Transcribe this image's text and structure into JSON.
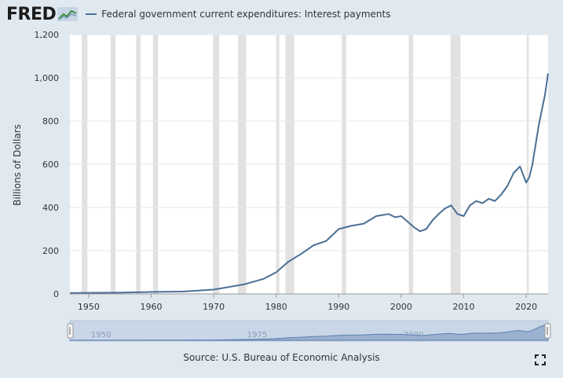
{
  "brand": {
    "logo_text": "FRED"
  },
  "footer": {
    "source": "Source: U.S. Bureau of Economic Analysis"
  },
  "icons": {
    "logo": "fred-chart-icon",
    "fullscreen": "fullscreen-icon"
  },
  "chart_data": {
    "type": "line",
    "title": "",
    "xlabel": "",
    "ylabel": "Billions of Dollars",
    "xlim": [
      1947,
      2023.5
    ],
    "ylim": [
      0,
      1200
    ],
    "grid": true,
    "legend_position": "top-left",
    "x_ticks": [
      1950,
      1960,
      1970,
      1980,
      1990,
      2000,
      2010,
      2020
    ],
    "y_ticks": [
      0,
      200,
      400,
      600,
      800,
      1000,
      1200
    ],
    "y_tick_labels": [
      "0",
      "200",
      "400",
      "600",
      "800",
      "1,000",
      "1,200"
    ],
    "recessions": [
      [
        1948.9,
        1949.8
      ],
      [
        1953.5,
        1954.3
      ],
      [
        1957.6,
        1958.3
      ],
      [
        1960.3,
        1961.1
      ],
      [
        1969.9,
        1970.9
      ],
      [
        1973.9,
        1975.2
      ],
      [
        1980.0,
        1980.5
      ],
      [
        1981.5,
        1982.9
      ],
      [
        1990.5,
        1991.2
      ],
      [
        2001.2,
        2001.9
      ],
      [
        2007.9,
        2009.5
      ],
      [
        2020.1,
        2020.4
      ]
    ],
    "series": [
      {
        "name": "Federal government current expenditures: Interest payments",
        "color": "#4a6f95",
        "x": [
          1947,
          1950,
          1955,
          1960,
          1965,
          1970,
          1972,
          1975,
          1978,
          1980,
          1982,
          1984,
          1986,
          1988,
          1990,
          1992,
          1994,
          1996,
          1998,
          1999,
          2000,
          2001,
          2002,
          2003,
          2004,
          2005,
          2006,
          2007,
          2008,
          2009,
          2010,
          2011,
          2012,
          2013,
          2014,
          2015,
          2016,
          2017,
          2018,
          2019,
          2020,
          2020.5,
          2021,
          2022,
          2022.5,
          2023,
          2023.5
        ],
        "values": [
          4,
          5,
          6,
          9,
          11,
          20,
          30,
          45,
          70,
          100,
          150,
          185,
          225,
          245,
          300,
          315,
          325,
          360,
          370,
          355,
          360,
          335,
          310,
          290,
          300,
          340,
          370,
          395,
          410,
          370,
          360,
          410,
          430,
          420,
          440,
          430,
          460,
          500,
          560,
          590,
          515,
          540,
          600,
          780,
          850,
          920,
          1020
        ]
      }
    ],
    "navigator": {
      "x_ticks": [
        1950,
        1975,
        2000
      ]
    }
  }
}
